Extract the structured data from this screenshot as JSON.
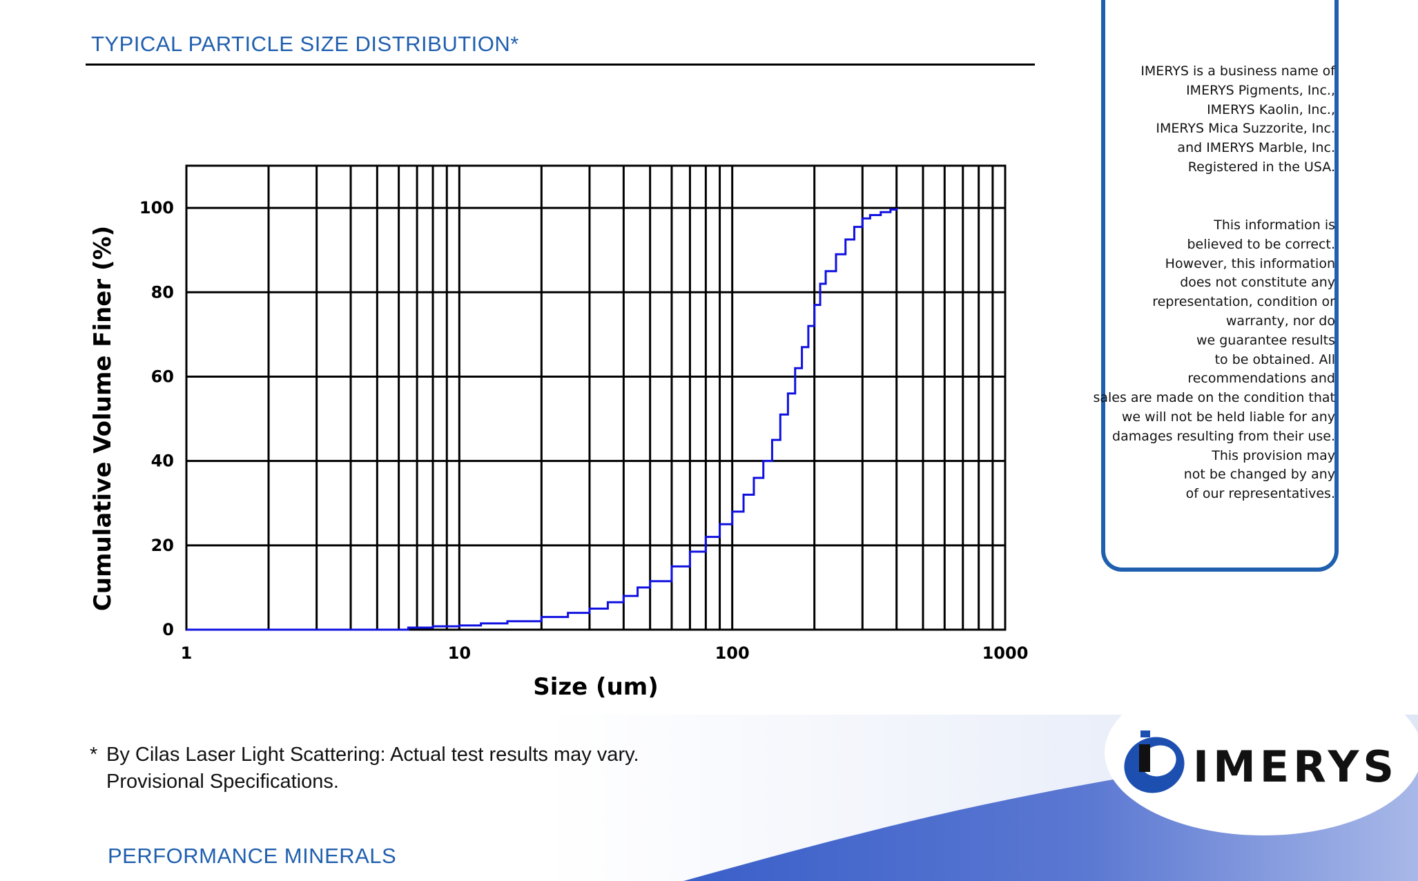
{
  "header": {
    "title": "TYPICAL PARTICLE SIZE DISTRIBUTION*"
  },
  "chart_data": {
    "type": "line",
    "xscale": "log",
    "xlim": [
      1,
      1000
    ],
    "ylim": [
      0,
      110
    ],
    "xlabel": "Size (um)",
    "ylabel": "Cumulative Volume Finer (%)",
    "x_ticks": [
      "1",
      "10",
      "100",
      "1000"
    ],
    "y_ticks": [
      "0",
      "20",
      "40",
      "60",
      "80",
      "100"
    ],
    "grid": true,
    "line_color": "#1010e0",
    "series": [
      {
        "x": [
          1,
          2,
          4,
          6.5,
          8,
          10,
          12,
          15,
          20,
          25,
          30,
          35,
          40,
          45,
          50,
          60,
          70,
          80,
          90,
          100,
          110,
          120,
          130,
          140,
          150,
          160,
          170,
          180,
          190,
          200,
          210,
          220,
          240,
          260,
          280,
          300,
          320,
          350,
          380,
          400
        ],
        "y": [
          0,
          0,
          0,
          0.5,
          0.8,
          1,
          1.5,
          2,
          3,
          4,
          5,
          6.5,
          8,
          10,
          11.5,
          15,
          18.5,
          22,
          25,
          28,
          32,
          36,
          40,
          45,
          51,
          56,
          62,
          67,
          72,
          77,
          82,
          85,
          89,
          92.5,
          95.5,
          97.5,
          98.3,
          99,
          99.6,
          100
        ]
      }
    ]
  },
  "footnote": {
    "marker": "*",
    "lines": [
      "By Cilas Laser Light Scattering: Actual test results may vary.",
      "Provisional Specifications."
    ]
  },
  "brand_line": "PERFORMANCE MINERALS",
  "disclaimer": {
    "company_lines": [
      "IMERYS is a business name of",
      "IMERYS Pigments, Inc.,",
      "IMERYS Kaolin, Inc.,",
      "IMERYS Mica Suzzorite, Inc.",
      "and IMERYS Marble, Inc.",
      "Registered in the USA."
    ],
    "legal_lines": [
      "This information is",
      "believed to be correct.",
      "However, this information",
      "does not constitute any",
      "representation, condition or",
      "warranty, nor do",
      "we guarantee results",
      "to be obtained.  All",
      "recommendations and",
      "sales are made on the condition that",
      "we will not be held liable for any",
      "damages resulting from their use.",
      "This provision may",
      "not be changed by any",
      "of our representatives."
    ]
  },
  "logo": {
    "wordmark": "IMERYS",
    "icon": "imerys-logo-icon"
  },
  "colors": {
    "accent": "#1f5fae",
    "curve": "#1010e0",
    "swoosh": "#2f52bf"
  }
}
